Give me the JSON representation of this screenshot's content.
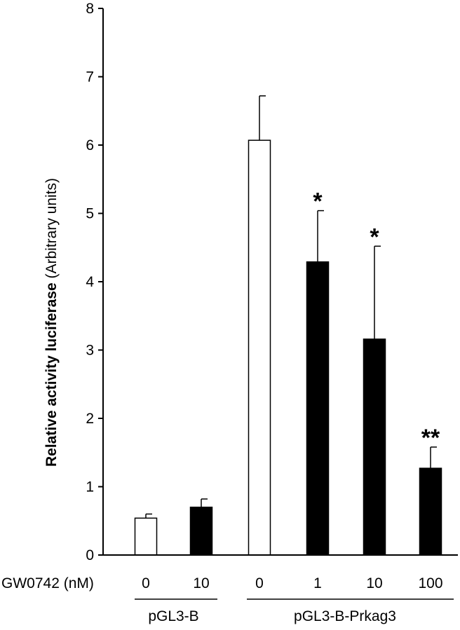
{
  "chart_data": {
    "type": "bar",
    "ylabel_bold": "Relative activity luciferase",
    "ylabel_normal": " (Arbitrary units)",
    "xlabel": "GW0742 (nM)",
    "ylim": [
      0,
      8
    ],
    "yticks": [
      "0",
      "1",
      "2",
      "3",
      "4",
      "5",
      "6",
      "7",
      "8"
    ],
    "categories": [
      "0",
      "10",
      "0",
      "1",
      "10",
      "100"
    ],
    "values": [
      0.54,
      0.7,
      6.07,
      4.29,
      3.16,
      1.27
    ],
    "errors": [
      0.06,
      0.12,
      0.65,
      0.75,
      1.36,
      0.31
    ],
    "fill": [
      "#ffffff",
      "#000000",
      "#ffffff",
      "#000000",
      "#000000",
      "#000000"
    ],
    "significance": [
      "",
      "",
      "",
      "*",
      "*",
      "**"
    ],
    "groups": [
      {
        "label": "pGL3-B",
        "members": [
          0,
          1
        ]
      },
      {
        "label": "pGL3-B-Prkag3",
        "members": [
          2,
          3,
          4,
          5
        ]
      }
    ],
    "grid": false,
    "legend": "none"
  }
}
